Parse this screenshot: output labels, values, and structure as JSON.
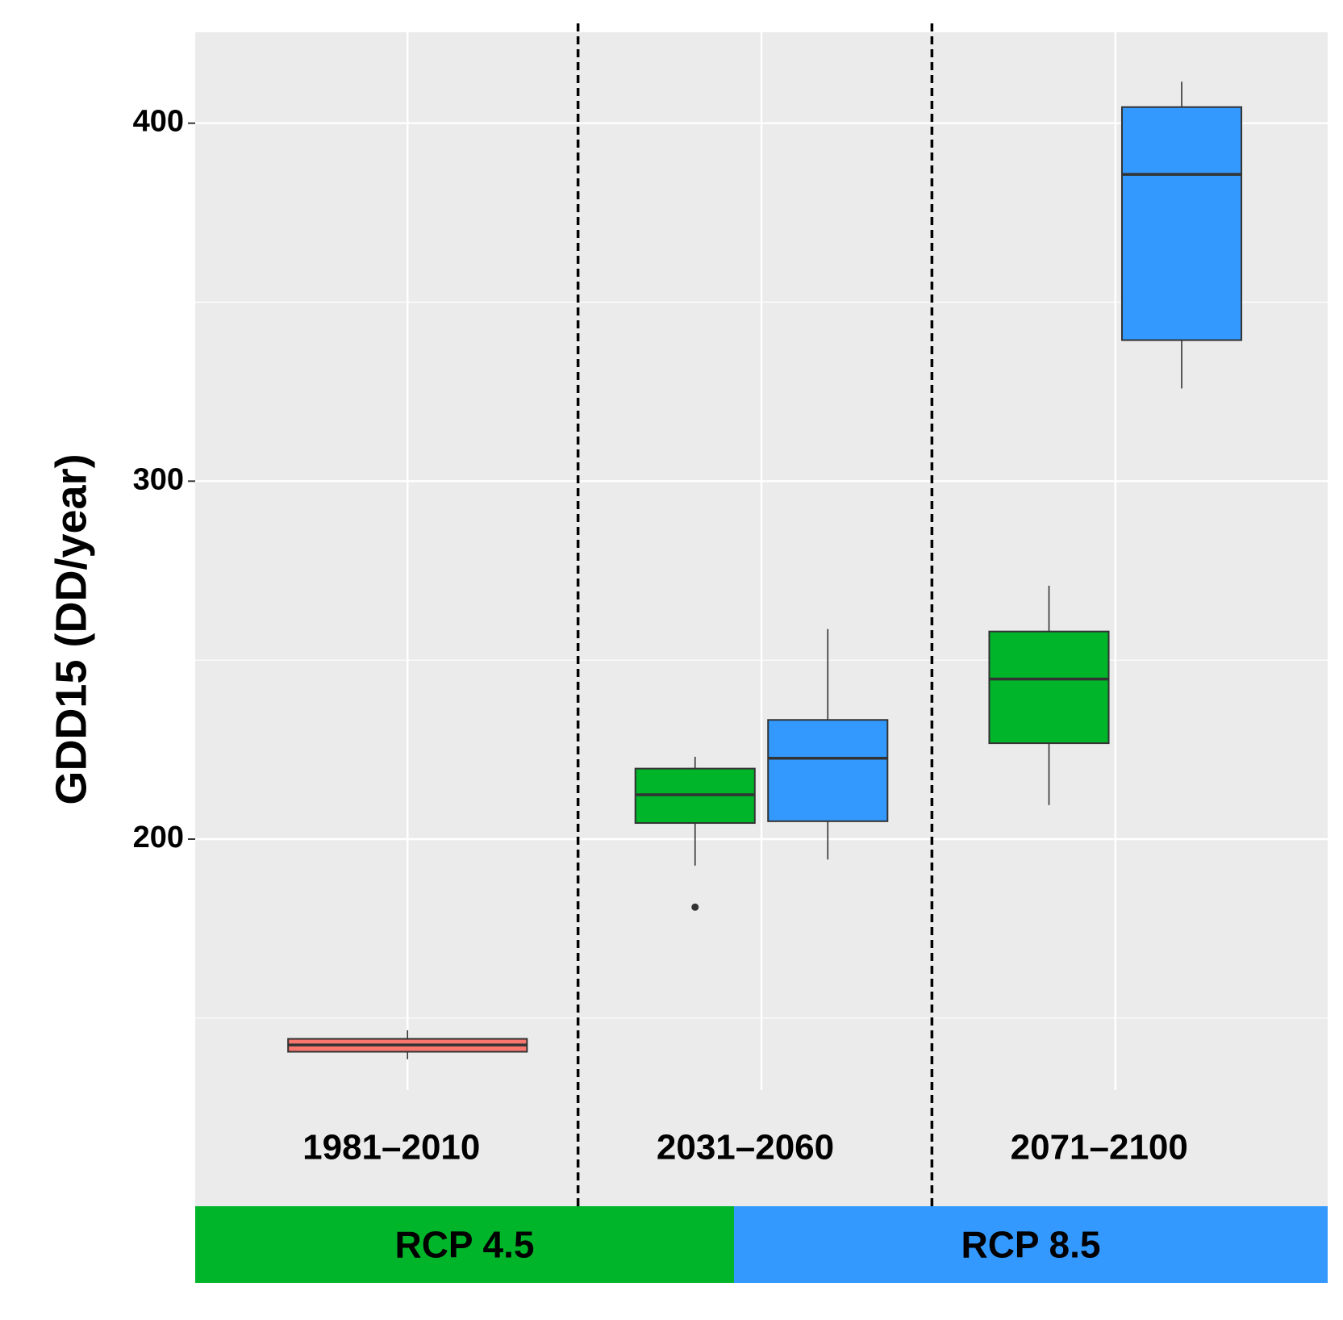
{
  "chart_data": {
    "type": "box",
    "y_label": "GDD15 (DD/year)",
    "categories": [
      "1981–2010",
      "2031–2060",
      "2071–2100"
    ],
    "series": [
      {
        "color": "#F8766D",
        "boxes": [
          {
            "whislo": 138.5,
            "q1": 140.6,
            "med": 142.5,
            "q3": 144.2,
            "whishi": 146.6,
            "fliers": []
          },
          null,
          null
        ]
      },
      {
        "name": "RCP 4.5",
        "color": "#00B52A",
        "boxes": [
          null,
          {
            "whislo": 192.6,
            "q1": 204.5,
            "med": 212.4,
            "q3": 219.7,
            "whishi": 223.0,
            "fliers": [
              181.0
            ]
          },
          {
            "whislo": 209.5,
            "q1": 226.8,
            "med": 244.7,
            "q3": 258.0,
            "whishi": 270.8,
            "fliers": []
          }
        ]
      },
      {
        "name": "RCP 8.5",
        "color": "#3399FF",
        "boxes": [
          null,
          {
            "whislo": 194.3,
            "q1": 205.0,
            "med": 222.6,
            "q3": 233.3,
            "whishi": 258.7,
            "fliers": []
          },
          {
            "whislo": 325.9,
            "q1": 339.4,
            "med": 385.7,
            "q3": 404.5,
            "whishi": 411.6,
            "fliers": []
          }
        ]
      }
    ],
    "ylim": [
      129.9,
      425.4
    ],
    "yticks": [
      200,
      300,
      400
    ],
    "grid": true
  }
}
